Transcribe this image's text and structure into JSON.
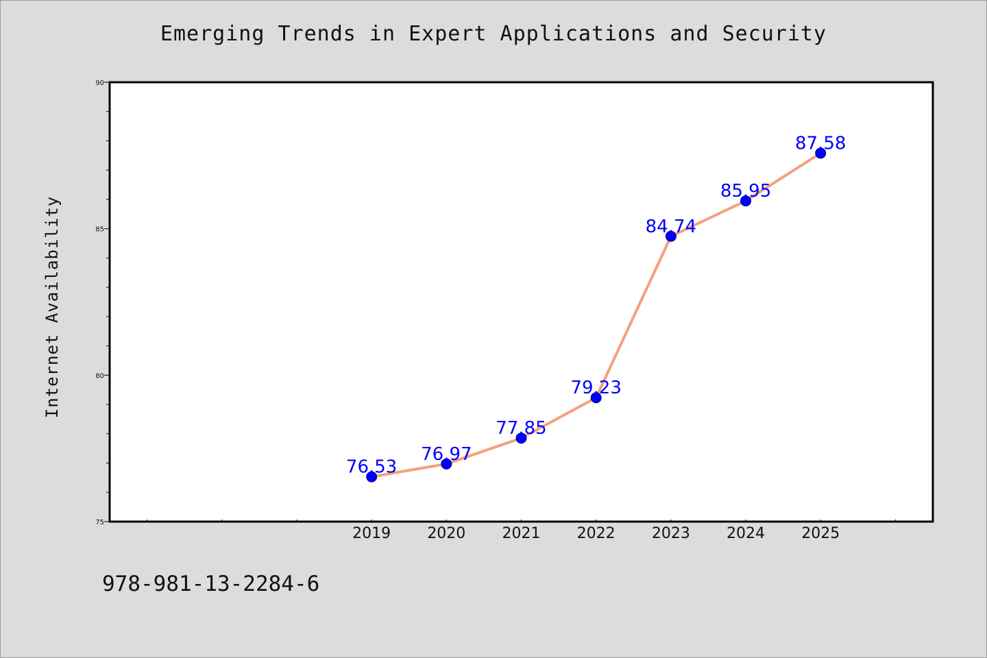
{
  "chart_data": {
    "type": "line",
    "title": "Emerging Trends in Expert Applications and Security",
    "ylabel": "Internet Availability",
    "xlabel": "",
    "x": [
      2019,
      2020,
      2021,
      2022,
      2023,
      2024,
      2025
    ],
    "xlim": [
      2015.5,
      2026.5
    ],
    "ylim": [
      75,
      90
    ],
    "yticks": [
      75,
      80,
      85,
      90
    ],
    "series": [
      {
        "values": [
          76.53,
          76.97,
          77.85,
          79.23,
          84.74,
          85.95,
          87.58
        ]
      }
    ],
    "line_color": "#f5a07a",
    "marker_color": "#0000ff",
    "label_color": "#0000ff",
    "grid": false,
    "data_labels": [
      "76.53",
      "76.97",
      "77.85",
      "79.23",
      "84.74",
      "85.95",
      "87.58"
    ]
  },
  "footer": {
    "isbn": "978-981-13-2284-6"
  }
}
